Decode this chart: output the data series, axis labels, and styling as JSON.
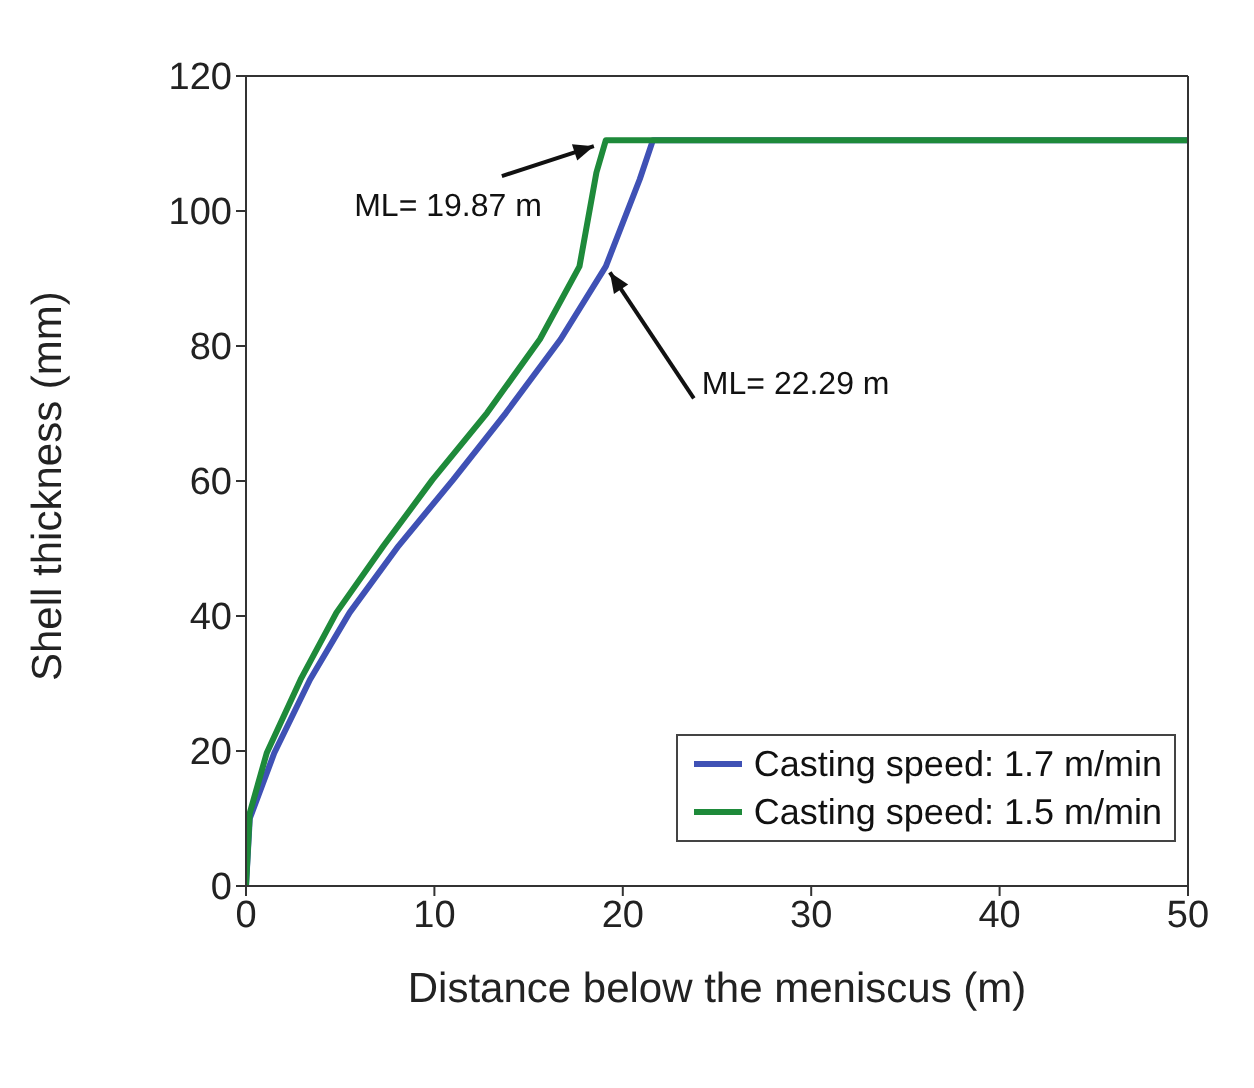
{
  "chart_data": {
    "type": "line",
    "xlabel": "Distance below the meniscus (m)",
    "ylabel": "Shell thickness (mm)",
    "xlim": [
      0,
      50
    ],
    "xticks": [
      0,
      10,
      20,
      30,
      40,
      50
    ],
    "ylim": [
      0,
      120
    ],
    "yticks": [
      0,
      20,
      40,
      60,
      80,
      100,
      120
    ],
    "grid": false,
    "legend": "bottom right",
    "marker": "none",
    "line_style": "solid",
    "series": [
      {
        "name": "Casting speed: 1.7 m/min",
        "color": "#3f51b5",
        "x": [
          0,
          0.2,
          1.5,
          3.4,
          5.5,
          8.1,
          11.0,
          13.8,
          16.7,
          19.1,
          20.9,
          21.6,
          50
        ],
        "values": [
          0,
          10,
          19.7,
          30.6,
          40.5,
          50.4,
          60.2,
          70.1,
          81,
          91.8,
          104.7,
          110.5,
          110.5
        ]
      },
      {
        "name": "Casting speed: 1.5 m/min",
        "color": "#1e8a3a",
        "x": [
          0,
          0.2,
          1.1,
          2.9,
          4.8,
          7.3,
          9.9,
          12.8,
          15.6,
          17.7,
          18.6,
          19.1,
          50
        ],
        "values": [
          0,
          10.8,
          19.7,
          30.6,
          40.5,
          50.4,
          60.2,
          70.1,
          81,
          91.8,
          105.7,
          110.5,
          110.5
        ]
      }
    ],
    "annotations": [
      {
        "text": "ML= 19.87 m",
        "x": 19.1,
        "y": 110.5
      },
      {
        "text": "ML= 22.29 m",
        "x": 19.1,
        "y": 91.8
      }
    ]
  }
}
